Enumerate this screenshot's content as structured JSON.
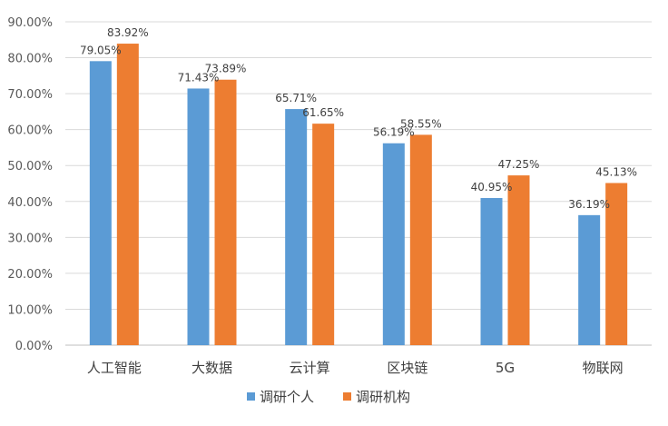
{
  "chart_data": {
    "type": "bar",
    "title": "",
    "xlabel": "",
    "ylabel": "",
    "categories": [
      "人工智能",
      "大数据",
      "云计算",
      "区块链",
      "5G",
      "物联网"
    ],
    "series": [
      {
        "name": "调研个人",
        "color": "#5b9bd5",
        "values": [
          79.05,
          71.43,
          65.71,
          56.19,
          40.95,
          36.19
        ],
        "labels": [
          "79.05%",
          "71.43%",
          "65.71%",
          "56.19%",
          "40.95%",
          "36.19%"
        ]
      },
      {
        "name": "调研机构",
        "color": "#ed7d31",
        "values": [
          83.92,
          73.89,
          61.65,
          58.55,
          47.25,
          45.13
        ],
        "labels": [
          "83.92%",
          "73.89%",
          "61.65%",
          "58.55%",
          "47.25%",
          "45.13%"
        ]
      }
    ],
    "ylim": [
      0,
      90
    ],
    "yticks": [
      0,
      10,
      20,
      30,
      40,
      50,
      60,
      70,
      80,
      90
    ],
    "ytick_labels": [
      "0.00%",
      "10.00%",
      "20.00%",
      "30.00%",
      "40.00%",
      "50.00%",
      "60.00%",
      "70.00%",
      "80.00%",
      "90.00%"
    ],
    "grid": true,
    "legend_position": "bottom"
  }
}
